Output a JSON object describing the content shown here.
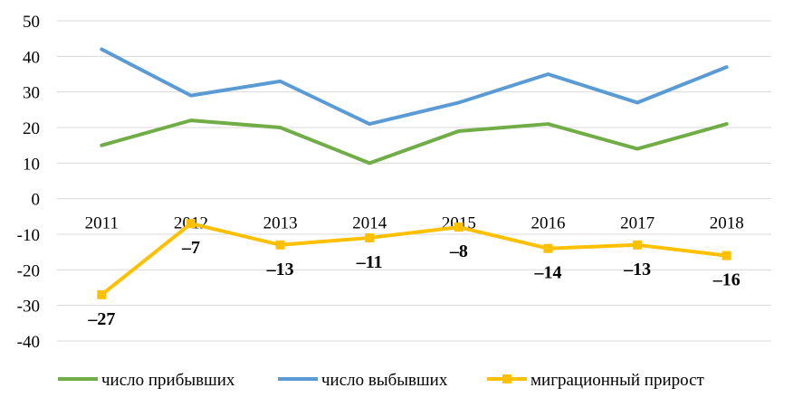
{
  "chart_data": {
    "type": "line",
    "title": "",
    "xlabel": "",
    "ylabel": "",
    "categories": [
      "2011",
      "2012",
      "2013",
      "2014",
      "2015",
      "2016",
      "2017",
      "2018"
    ],
    "ylim": [
      -40,
      50
    ],
    "yticks": [
      "50",
      "40",
      "30",
      "20",
      "10",
      "0",
      "-10",
      "-20",
      "-30",
      "-40"
    ],
    "grid": true,
    "legend_position": "bottom",
    "series": [
      {
        "name": "число прибывших",
        "color": "#70AD47",
        "marker": "none",
        "values": [
          15,
          22,
          20,
          10,
          19,
          21,
          14,
          21
        ]
      },
      {
        "name": "число выбывших",
        "color": "#5B9BD5",
        "marker": "none",
        "values": [
          42,
          29,
          33,
          21,
          27,
          35,
          27,
          37
        ]
      },
      {
        "name": "миграционный прирост",
        "color": "#FFC000",
        "marker": "square",
        "values": [
          -27,
          -7,
          -13,
          -11,
          -8,
          -14,
          -13,
          -16
        ],
        "data_labels": [
          "–27",
          "–7",
          "–13",
          "–11",
          "–8",
          "–14",
          "–13",
          "–16"
        ]
      }
    ]
  }
}
